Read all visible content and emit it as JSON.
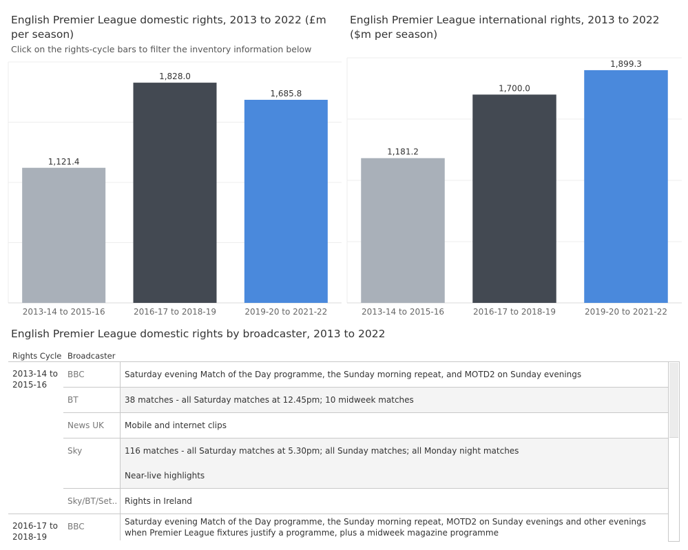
{
  "charts": {
    "domestic": {
      "title": "English Premier League domestic rights, 2013 to 2022 (£m per season)",
      "subtitle": "Click on the rights-cycle bars to filter the inventory information below"
    },
    "international": {
      "title": "English Premier League international rights, 2013 to 2022 ($m per season)"
    }
  },
  "chart_data": [
    {
      "type": "bar",
      "title": "English Premier League domestic rights, 2013 to 2022 (£m per season)",
      "categories": [
        "2013-14 to 2015-16",
        "2016-17 to 2018-19",
        "2019-20 to 2021-22"
      ],
      "values": [
        1121.4,
        1828.0,
        1685.8
      ],
      "value_labels": [
        "1,121.4",
        "1,828.0",
        "1,685.8"
      ],
      "colors": [
        "#a9b0b9",
        "#434952",
        "#4a89dc"
      ],
      "ylim": [
        0,
        2000
      ],
      "xlabel": "",
      "ylabel": "",
      "grid": true
    },
    {
      "type": "bar",
      "title": "English Premier League international rights, 2013 to 2022 ($m per season)",
      "categories": [
        "2013-14 to 2015-16",
        "2016-17 to 2018-19",
        "2019-20 to 2021-22"
      ],
      "values": [
        1181.2,
        1700.0,
        1899.3
      ],
      "value_labels": [
        "1,181.2",
        "1,700.0",
        "1,899.3"
      ],
      "colors": [
        "#a9b0b9",
        "#434952",
        "#4a89dc"
      ],
      "ylim": [
        0,
        2000
      ],
      "xlabel": "",
      "ylabel": "",
      "grid": true
    }
  ],
  "table": {
    "title": "English Premier League domestic rights by broadcaster, 2013 to 2022",
    "headers": {
      "cycle": "Rights Cycle",
      "broadcaster": "Broadcaster"
    },
    "groups": [
      {
        "cycle": "2013-14 to 2015-16",
        "broadcasters": [
          {
            "name": "BBC",
            "items": [
              "Saturday evening Match of the Day programme, the Sunday morning repeat, and MOTD2 on Sunday evenings"
            ]
          },
          {
            "name": "BT",
            "items": [
              "38 matches - all Saturday matches at 12.45pm; 10 midweek matches"
            ]
          },
          {
            "name": "News UK",
            "items": [
              "Mobile and internet clips"
            ]
          },
          {
            "name": "Sky",
            "items": [
              "116 matches - all Saturday matches at 5.30pm; all Sunday matches; all Monday night matches",
              "Near-live highlights"
            ]
          },
          {
            "name": "Sky/BT/Set..",
            "items": [
              "Rights in Ireland"
            ]
          }
        ]
      },
      {
        "cycle": "2016-17 to 2018-19",
        "broadcasters": [
          {
            "name": "BBC",
            "items": [
              "Saturday evening Match of the Day programme, the Sunday morning repeat, MOTD2 on Sunday evenings and other evenings when Premier League fixtures justify a programme, plus a midweek magazine programme"
            ]
          }
        ]
      }
    ]
  }
}
